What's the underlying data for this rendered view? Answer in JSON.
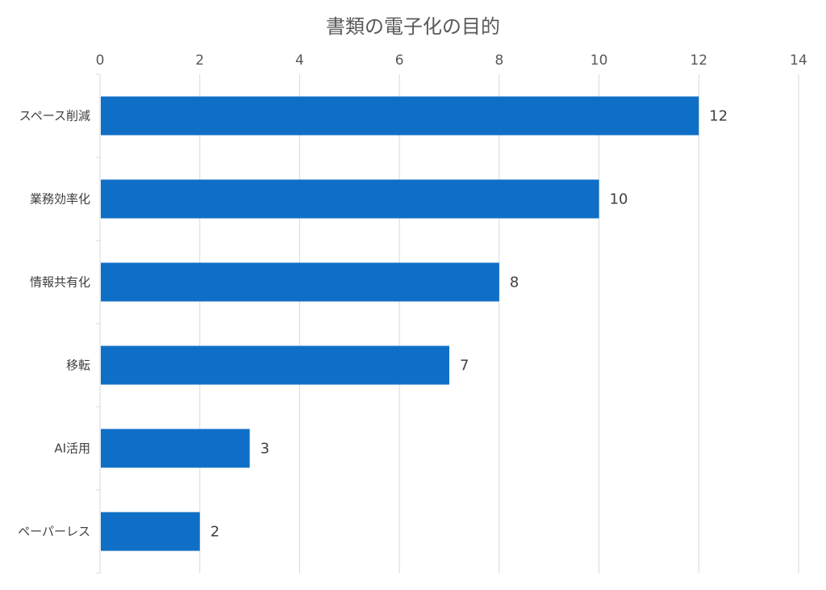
{
  "chart_data": {
    "type": "bar",
    "orientation": "horizontal",
    "title": "書類の電子化の目的",
    "categories": [
      "スペース削減",
      "業務効率化",
      "情報共有化",
      "移転",
      "AI活用",
      "ペーパーレス"
    ],
    "values": [
      12,
      10,
      8,
      7,
      3,
      2
    ],
    "xlim": [
      0,
      14
    ],
    "xticks": [
      0,
      2,
      4,
      6,
      8,
      10,
      12,
      14
    ],
    "xtick_labels": [
      "0",
      "2",
      "4",
      "6",
      "8",
      "10",
      "12",
      "14"
    ],
    "tick_position": "top",
    "grid": true,
    "legend": "none",
    "bar_color": "#0f6fc6"
  }
}
